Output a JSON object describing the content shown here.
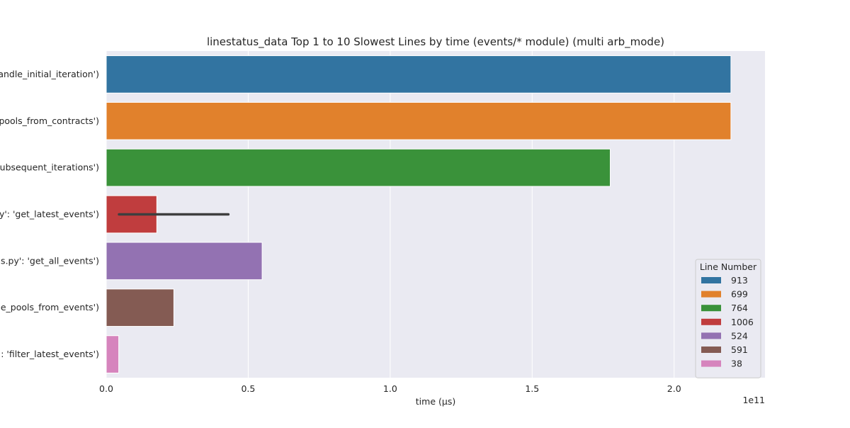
{
  "chart_data": {
    "type": "bar",
    "orientation": "horizontal",
    "title": "linestatus_data Top 1 to 10 Slowest Lines by time (events/* module) (multi arb_mode)",
    "xlabel": "time (µs)",
    "ylabel": "",
    "x_scale_label": "1e11",
    "xlim": [
      0,
      2.32
    ],
    "xticks": [
      0.0,
      0.5,
      1.0,
      1.5,
      2.0
    ],
    "xtick_labels": [
      "0.0",
      "0.5",
      "1.0",
      "1.5",
      "2.0"
    ],
    "grid": true,
    "legend_position": "lower-right",
    "legend_title": "Line Number",
    "categories": [
      "andle_initial_iteration')",
      "pools_from_contracts')",
      "subsequent_iterations')",
      "oy': 'get_latest_events')",
      "ils.py': 'get_all_events')",
      "e_pools_from_events')",
      "y': 'filter_latest_events')"
    ],
    "series": [
      {
        "name": "913",
        "color": "#3274a1",
        "value": 2.2,
        "error": null
      },
      {
        "name": "699",
        "color": "#e1812c",
        "value": 2.2,
        "error": null
      },
      {
        "name": "764",
        "color": "#3a923a",
        "value": 1.775,
        "error": null
      },
      {
        "name": "1006",
        "color": "#c03d3e",
        "value": 0.178,
        "error": [
          0.045,
          0.43
        ]
      },
      {
        "name": "524",
        "color": "#9372b2",
        "value": 0.549,
        "error": null
      },
      {
        "name": "591",
        "color": "#845b53",
        "value": 0.238,
        "error": null
      },
      {
        "name": "38",
        "color": "#d684bd",
        "value": 0.044,
        "error": null
      }
    ],
    "colors": {
      "background": "#eaeaf2",
      "grid": "#ffffff",
      "errorbar": "#3f3f3f",
      "text": "#262626"
    }
  }
}
